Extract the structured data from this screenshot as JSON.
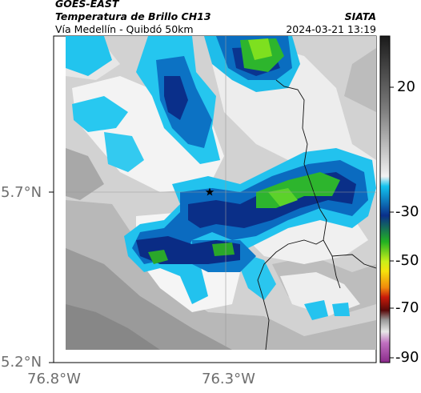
{
  "header": {
    "source": "GOES-EAST",
    "product": "Temperatura de Brillo CH13",
    "route": "Vía Medellín - Quibdó 50km",
    "org": "SIATA",
    "timestamp": "2024-03-21 13:19"
  },
  "axes": {
    "lon_ticks": [
      "76.8°W",
      "76.3°W"
    ],
    "lat_ticks": [
      "5.7°N",
      "5.2°N"
    ]
  },
  "colorbar": {
    "ticks": [
      "20",
      "-30",
      "-50",
      "-70",
      "-90"
    ],
    "unit": ""
  },
  "map": {
    "marker": "star-icon",
    "colors": {
      "warm_gray": "#8a8a8a",
      "light_gray": "#cfcfcf",
      "white": "#f2f2f2",
      "cyan": "#1fc8ef",
      "blue": "#0a6fc2",
      "navy": "#0a2f8a",
      "green": "#2db52d",
      "lime": "#7ee01f"
    }
  }
}
